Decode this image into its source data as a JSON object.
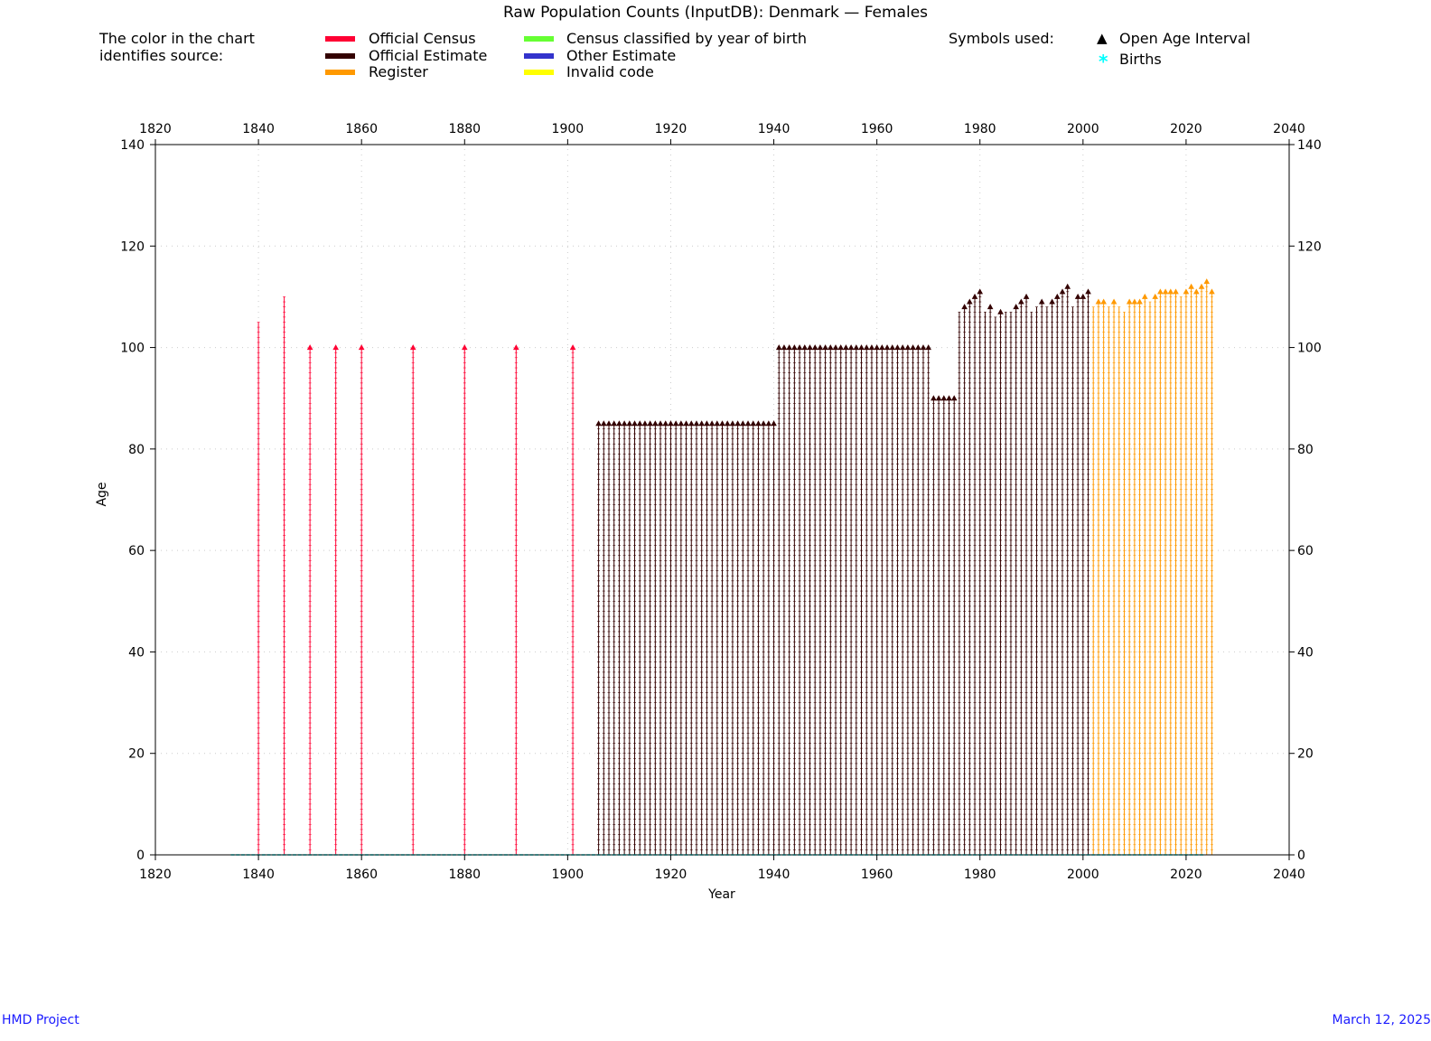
{
  "title": "Raw Population Counts (InputDB): Denmark — Females",
  "legend": {
    "intro_line1": "The color in the chart",
    "intro_line2": "identifies source:",
    "sources": [
      {
        "label": "Official Census",
        "color": "#ff0033"
      },
      {
        "label": "Official Estimate",
        "color": "#330000"
      },
      {
        "label": "Register",
        "color": "#ff9900"
      },
      {
        "label": "Census classified by year of birth",
        "color": "#66ff33"
      },
      {
        "label": "Other Estimate",
        "color": "#3333cc"
      },
      {
        "label": "Invalid code",
        "color": "#ffff00"
      }
    ],
    "symbols_title": "Symbols used:",
    "symbols": [
      {
        "label": "Open Age Interval",
        "glyph": "▲",
        "color": "#000000"
      },
      {
        "label": "Births",
        "glyph": "*",
        "color": "#00ffff"
      }
    ]
  },
  "footer": {
    "left": "HMD Project",
    "right": "March 12, 2025"
  },
  "chart_data": {
    "type": "scatter",
    "xlabel": "Year",
    "ylabel": "Age",
    "xlim": [
      1820,
      2040
    ],
    "ylim": [
      0,
      140
    ],
    "x_ticks": [
      1820,
      1840,
      1860,
      1880,
      1900,
      1920,
      1940,
      1960,
      1980,
      2000,
      2020,
      2040
    ],
    "y_ticks": [
      0,
      20,
      40,
      60,
      80,
      100,
      120,
      140
    ],
    "grid": true,
    "series": [
      {
        "name": "Official Census",
        "color": "#ff0033",
        "columns": [
          {
            "year": 1840,
            "max_age": 105,
            "open": false
          },
          {
            "year": 1845,
            "max_age": 110,
            "open": false
          },
          {
            "year": 1850,
            "max_age": 100,
            "open": true
          },
          {
            "year": 1855,
            "max_age": 100,
            "open": true
          },
          {
            "year": 1860,
            "max_age": 100,
            "open": true
          },
          {
            "year": 1870,
            "max_age": 100,
            "open": true
          },
          {
            "year": 1880,
            "max_age": 100,
            "open": true
          },
          {
            "year": 1890,
            "max_age": 100,
            "open": true
          },
          {
            "year": 1901,
            "max_age": 100,
            "open": true
          }
        ]
      },
      {
        "name": "Official Estimate",
        "color": "#330000",
        "ranges": [
          {
            "from": 1906,
            "to": 1940,
            "max_age": 85,
            "open": true
          },
          {
            "from": 1941,
            "to": 1970,
            "max_age": 100,
            "open": true
          },
          {
            "from": 1971,
            "to": 1975,
            "max_age": 90,
            "open": true
          }
        ],
        "columns": [
          {
            "year": 1976,
            "max_age": 107,
            "open": false
          },
          {
            "year": 1977,
            "max_age": 108,
            "open": true
          },
          {
            "year": 1978,
            "max_age": 109,
            "open": true
          },
          {
            "year": 1979,
            "max_age": 110,
            "open": true
          },
          {
            "year": 1980,
            "max_age": 111,
            "open": true
          },
          {
            "year": 1981,
            "max_age": 107,
            "open": false
          },
          {
            "year": 1982,
            "max_age": 108,
            "open": true
          },
          {
            "year": 1983,
            "max_age": 106,
            "open": false
          },
          {
            "year": 1984,
            "max_age": 107,
            "open": true
          },
          {
            "year": 1985,
            "max_age": 107,
            "open": false
          },
          {
            "year": 1986,
            "max_age": 107,
            "open": false
          },
          {
            "year": 1987,
            "max_age": 108,
            "open": true
          },
          {
            "year": 1988,
            "max_age": 109,
            "open": true
          },
          {
            "year": 1989,
            "max_age": 110,
            "open": true
          },
          {
            "year": 1990,
            "max_age": 107,
            "open": false
          },
          {
            "year": 1991,
            "max_age": 108,
            "open": false
          },
          {
            "year": 1992,
            "max_age": 109,
            "open": true
          },
          {
            "year": 1993,
            "max_age": 108,
            "open": false
          },
          {
            "year": 1994,
            "max_age": 109,
            "open": true
          },
          {
            "year": 1995,
            "max_age": 110,
            "open": true
          },
          {
            "year": 1996,
            "max_age": 111,
            "open": true
          },
          {
            "year": 1997,
            "max_age": 112,
            "open": true
          },
          {
            "year": 1998,
            "max_age": 108,
            "open": false
          },
          {
            "year": 1999,
            "max_age": 110,
            "open": true
          },
          {
            "year": 2000,
            "max_age": 110,
            "open": true
          },
          {
            "year": 2001,
            "max_age": 111,
            "open": true
          }
        ]
      },
      {
        "name": "Register",
        "color": "#ff9900",
        "columns": [
          {
            "year": 2002,
            "max_age": 108,
            "open": false
          },
          {
            "year": 2003,
            "max_age": 109,
            "open": true
          },
          {
            "year": 2004,
            "max_age": 109,
            "open": true
          },
          {
            "year": 2005,
            "max_age": 108,
            "open": false
          },
          {
            "year": 2006,
            "max_age": 109,
            "open": true
          },
          {
            "year": 2007,
            "max_age": 108,
            "open": false
          },
          {
            "year": 2008,
            "max_age": 107,
            "open": false
          },
          {
            "year": 2009,
            "max_age": 109,
            "open": true
          },
          {
            "year": 2010,
            "max_age": 109,
            "open": true
          },
          {
            "year": 2011,
            "max_age": 109,
            "open": true
          },
          {
            "year": 2012,
            "max_age": 110,
            "open": true
          },
          {
            "year": 2013,
            "max_age": 109,
            "open": false
          },
          {
            "year": 2014,
            "max_age": 110,
            "open": true
          },
          {
            "year": 2015,
            "max_age": 111,
            "open": true
          },
          {
            "year": 2016,
            "max_age": 111,
            "open": true
          },
          {
            "year": 2017,
            "max_age": 111,
            "open": true
          },
          {
            "year": 2018,
            "max_age": 111,
            "open": true
          },
          {
            "year": 2019,
            "max_age": 110,
            "open": false
          },
          {
            "year": 2020,
            "max_age": 111,
            "open": true
          },
          {
            "year": 2021,
            "max_age": 112,
            "open": true
          },
          {
            "year": 2022,
            "max_age": 111,
            "open": true
          },
          {
            "year": 2023,
            "max_age": 112,
            "open": true
          },
          {
            "year": 2024,
            "max_age": 113,
            "open": true
          },
          {
            "year": 2025,
            "max_age": 111,
            "open": true
          }
        ]
      },
      {
        "name": "Births",
        "color": "#00ffff",
        "range": {
          "from": 1835,
          "to": 2023
        },
        "age": 0
      }
    ]
  }
}
